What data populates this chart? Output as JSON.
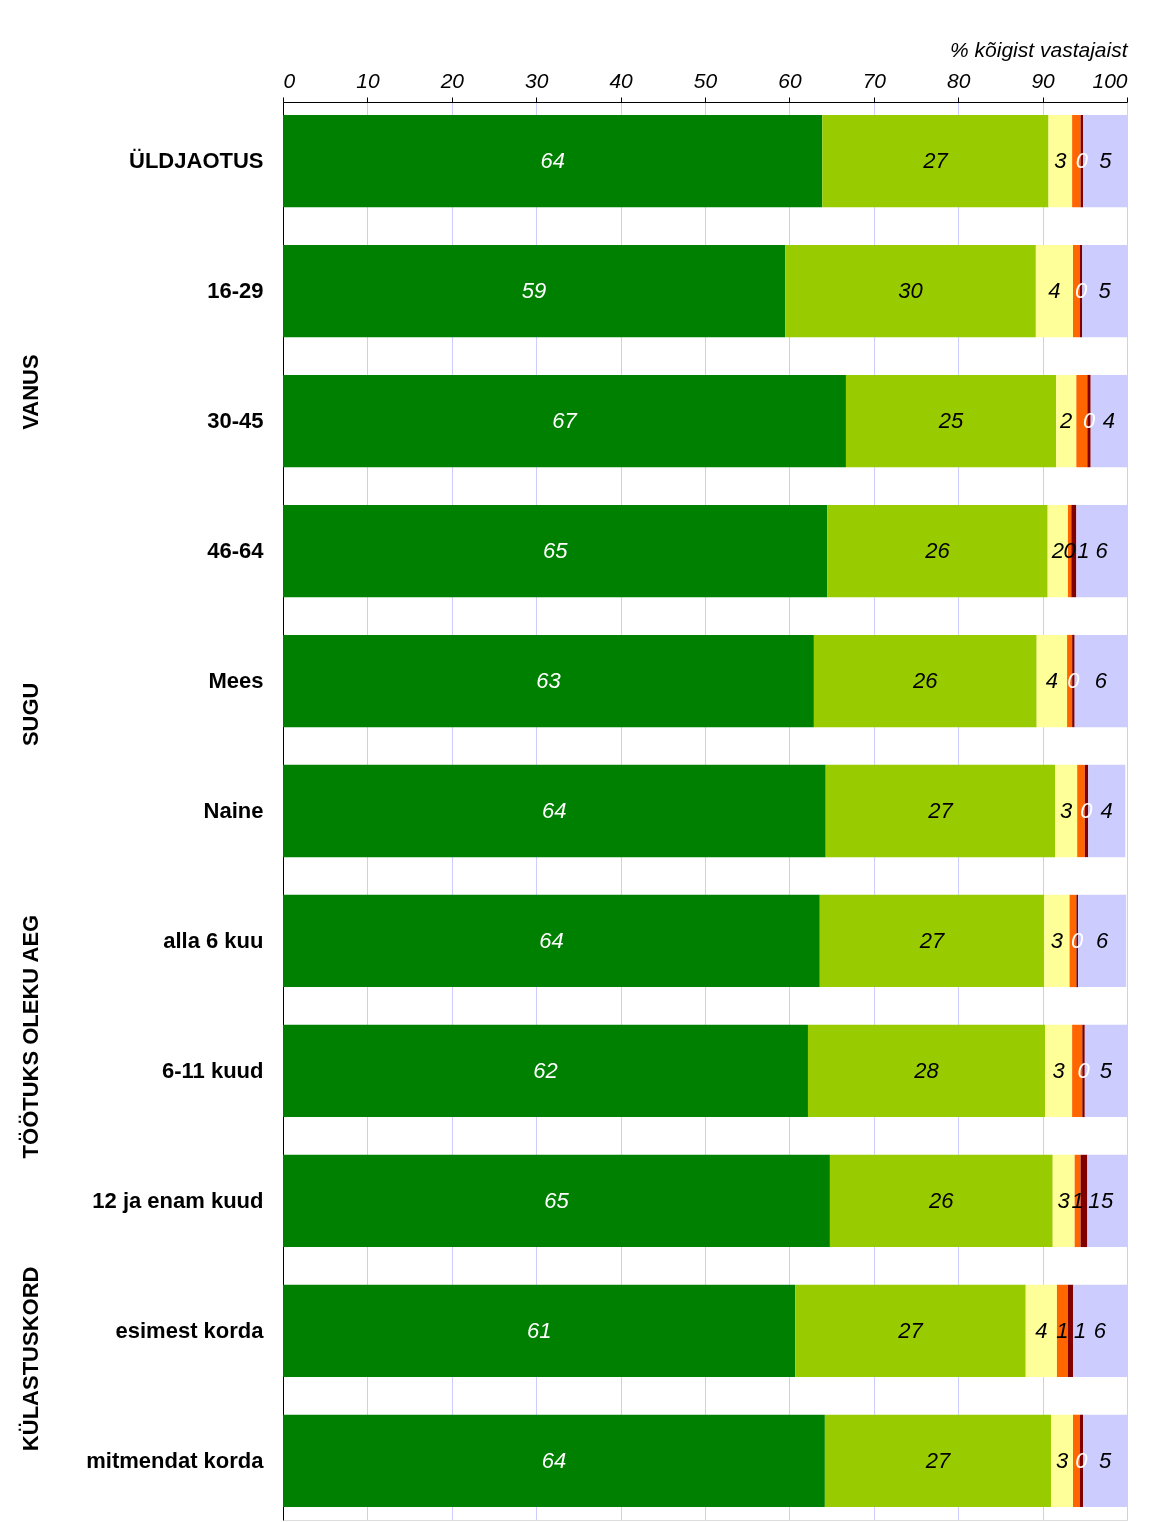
{
  "chart_data": {
    "type": "bar",
    "orientation": "horizontal",
    "stacked": true,
    "legend": false,
    "grid": "x",
    "xlabel": "% kõigist vastajaist",
    "categories": [
      "ÜLDJAOTUS",
      "16-29",
      "30-45",
      "46-64",
      "Mees",
      "Naine",
      "alla 6 kuu",
      "6-11 kuud",
      "12 ja enam kuud",
      "esimest korda",
      "mitmendat korda"
    ],
    "xlim": [
      0,
      100
    ],
    "xticks": [
      0,
      10,
      20,
      30,
      40,
      50,
      60,
      70,
      80,
      90,
      100
    ],
    "series": [
      {
        "color": "#008000",
        "values": [
          63.9,
          59.5,
          66.7,
          64.5,
          62.9,
          64.3,
          63.6,
          62.2,
          64.8,
          60.7,
          64.2
        ],
        "value_labels": [
          "64",
          "59",
          "67",
          "65",
          "63",
          "64",
          "64",
          "62",
          "65",
          "61",
          "64"
        ]
      },
      {
        "color": "#99cc00",
        "values": [
          26.8,
          29.7,
          24.9,
          26.1,
          26.4,
          27.2,
          26.6,
          28.1,
          26.4,
          27.3,
          26.8
        ],
        "value_labels": [
          "27",
          "30",
          "25",
          "26",
          "26",
          "27",
          "27",
          "28",
          "26",
          "27",
          "27"
        ]
      },
      {
        "color": "#ffff99",
        "values": [
          2.8,
          4.4,
          2.4,
          2.4,
          3.6,
          2.6,
          3.0,
          3.2,
          2.6,
          3.7,
          2.6
        ],
        "value_labels": [
          "3",
          "4",
          "2",
          "2",
          "4",
          "3",
          "3",
          "3",
          "3",
          "4",
          "3"
        ]
      },
      {
        "color": "#ff6600",
        "values": [
          1.0,
          0.8,
          1.3,
          0.4,
          0.6,
          0.9,
          0.8,
          1.2,
          0.7,
          1.3,
          0.8
        ],
        "value_labels": [
          null,
          null,
          null,
          "0",
          null,
          null,
          null,
          null,
          "1",
          "1",
          null
        ]
      },
      {
        "color": "#800000",
        "values": [
          0.3,
          0.3,
          0.4,
          0.6,
          0.3,
          0.4,
          0.2,
          0.3,
          0.8,
          0.6,
          0.4
        ],
        "value_labels": [
          "0",
          "0",
          "0",
          "1",
          "0",
          "0",
          "0",
          "0",
          "1",
          "1",
          "0"
        ]
      },
      {
        "color": "#ccccff",
        "values": [
          5.3,
          5.3,
          4.3,
          6.0,
          6.2,
          4.4,
          5.7,
          5.0,
          4.7,
          6.4,
          5.2
        ],
        "value_labels": [
          "5",
          "5",
          "4",
          "6",
          "6",
          "4",
          "6",
          "5",
          "5",
          "6",
          "5"
        ]
      }
    ],
    "annotations": [
      "VANUS",
      "SUGU",
      "TÖÖTUKS OLEKU AEG",
      "KÜLASTUSKORD"
    ]
  }
}
